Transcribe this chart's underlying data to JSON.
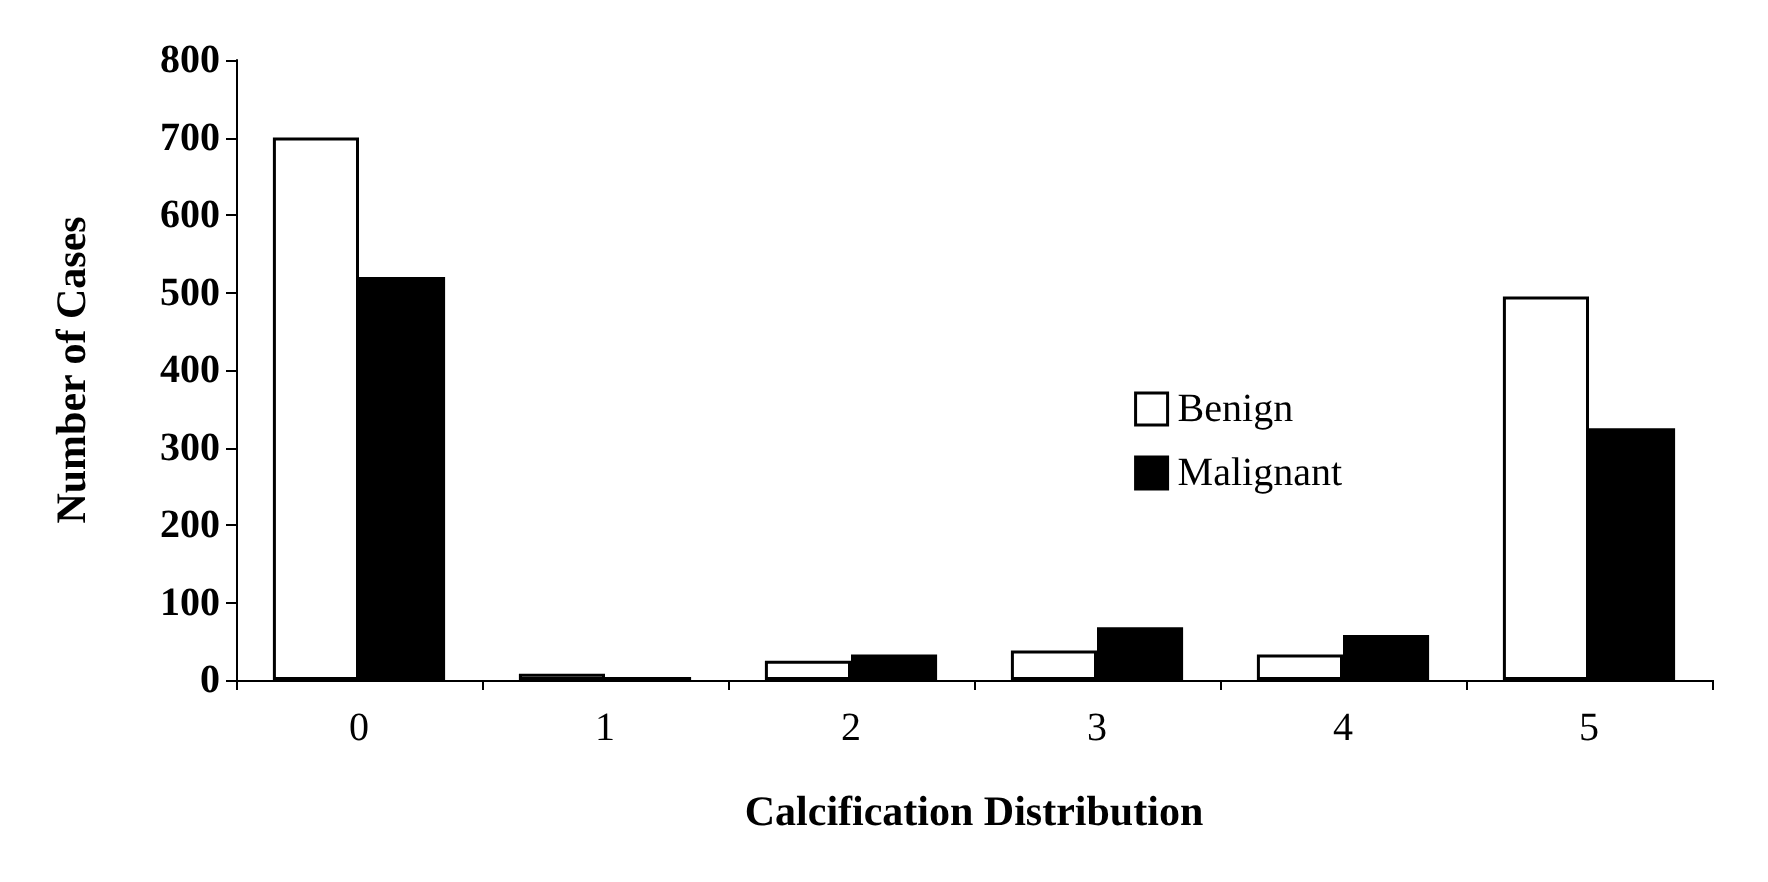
{
  "chart_data": {
    "type": "bar",
    "xlabel": "Calcification Distribution",
    "ylabel": "Number of Cases",
    "categories": [
      "0",
      "1",
      "2",
      "3",
      "4",
      "5"
    ],
    "series": [
      {
        "name": "Benign",
        "color": "#ffffff",
        "values": [
          700,
          8,
          25,
          38,
          33,
          495
        ]
      },
      {
        "name": "Malignant",
        "color": "#000000",
        "values": [
          520,
          4,
          33,
          68,
          58,
          325
        ]
      }
    ],
    "ylim": [
      0,
      800
    ],
    "yticks": [
      0,
      100,
      200,
      300,
      400,
      500,
      600,
      700,
      800
    ],
    "grid": false,
    "legend": "right"
  }
}
